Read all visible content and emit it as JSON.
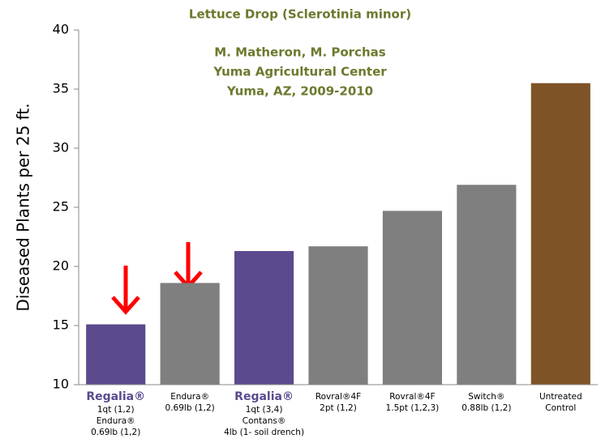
{
  "chart_data": {
    "type": "bar",
    "title": "Lettuce Drop (Sclerotinia minor)",
    "annotations": [
      "M. Matheron, M. Porchas",
      "Yuma Agricultural Center",
      "Yuma, AZ, 2009-2010"
    ],
    "y_label": "Diseased Plants per 25 ft.",
    "categories": [
      [
        "Regalia®",
        "1qt (1,2)",
        "Endura®",
        "0.69lb (1,2)"
      ],
      [
        "Endura®",
        "0.69lb (1,2)"
      ],
      [
        "Regalia®",
        "1qt (3,4)",
        "Contans®",
        "4lb (1- soil drench)"
      ],
      [
        "Rovral®4F",
        "2pt (1,2)"
      ],
      [
        "Rovral®4F",
        "1.5pt (1,2,3)"
      ],
      [
        "Switch®",
        "0.88lb (1,2)"
      ],
      [
        "Untreated",
        "Control"
      ]
    ],
    "values": [
      15.1,
      18.6,
      21.3,
      21.7,
      24.7,
      26.9,
      35.5
    ],
    "colors": [
      "#5b4a8e",
      "#7f7f7f",
      "#5b4a8e",
      "#7f7f7f",
      "#7f7f7f",
      "#7f7f7f",
      "#7e5427"
    ],
    "ylim": [
      10,
      40
    ],
    "yticks": [
      10,
      15,
      20,
      25,
      30,
      35,
      40
    ]
  }
}
